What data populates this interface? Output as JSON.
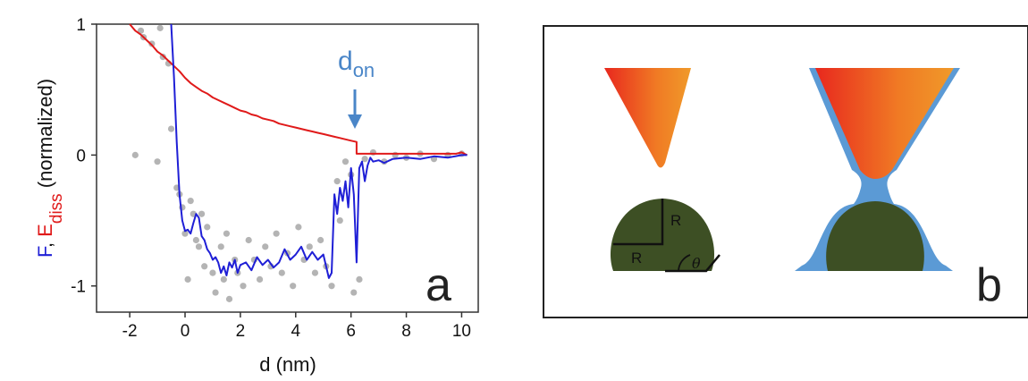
{
  "panel_a": {
    "letter": "a",
    "annotation": {
      "main": "d",
      "sub": "on"
    }
  },
  "panel_b": {
    "letter": "b",
    "labels": {
      "r1": "R",
      "r2": "R",
      "theta": "θ"
    }
  },
  "colors": {
    "force": "#1f1fd6",
    "energy": "#e01a1a",
    "points": "#b4b4b4",
    "annotation": "#4a86c8",
    "particle": "#3d4f24",
    "water": "#5b9ad5",
    "tip_start": "#e8281e",
    "tip_end": "#f09a2a"
  },
  "chart_data": {
    "type": "line",
    "title": "",
    "xlabel": "d (nm)",
    "ylabel_parts": [
      {
        "text": "F",
        "color": "#1f1fd6"
      },
      {
        "text": ", ",
        "color": "#111111"
      },
      {
        "text": "E",
        "color": "#e01a1a"
      },
      {
        "text": "diss",
        "color": "#e01a1a",
        "sub": true
      },
      {
        "text": " (normalized)",
        "color": "#111111"
      }
    ],
    "xlim": [
      -3.2,
      10.6
    ],
    "ylim": [
      -1.2,
      1.0
    ],
    "xticks": [
      -2,
      0,
      2,
      4,
      6,
      8,
      10
    ],
    "xtick_labels": [
      "-2",
      "0",
      "2",
      "4",
      "6",
      "8",
      "10"
    ],
    "yticks": [
      -1,
      0,
      1
    ],
    "ytick_labels": [
      "-1",
      "0",
      "1"
    ],
    "grid": false,
    "series": [
      {
        "role": "energy",
        "color": "#e01a1a",
        "x": [
          -2.0,
          -1.8,
          -1.6,
          -1.4,
          -1.2,
          -1.0,
          -0.8,
          -0.6,
          -0.4,
          -0.2,
          0.0,
          0.2,
          0.4,
          0.6,
          0.8,
          1.0,
          1.2,
          1.4,
          1.6,
          1.8,
          2.0,
          2.2,
          2.4,
          2.6,
          2.8,
          3.0,
          3.2,
          3.4,
          3.6,
          3.8,
          4.0,
          4.2,
          4.4,
          4.6,
          4.8,
          5.0,
          5.2,
          5.4,
          5.6,
          5.8,
          6.0,
          6.2,
          6.2,
          7.0,
          8.0,
          9.0,
          9.8,
          10.0,
          10.2
        ],
        "y": [
          1.0,
          0.95,
          0.92,
          0.88,
          0.84,
          0.79,
          0.76,
          0.72,
          0.68,
          0.64,
          0.59,
          0.55,
          0.52,
          0.49,
          0.47,
          0.44,
          0.42,
          0.4,
          0.38,
          0.36,
          0.34,
          0.33,
          0.31,
          0.3,
          0.28,
          0.27,
          0.26,
          0.24,
          0.23,
          0.22,
          0.21,
          0.2,
          0.19,
          0.18,
          0.17,
          0.16,
          0.15,
          0.14,
          0.13,
          0.12,
          0.11,
          0.1,
          0.01,
          0.01,
          0.01,
          0.01,
          0.01,
          0.02,
          0.0
        ]
      },
      {
        "role": "force",
        "color": "#1f1fd6",
        "x": [
          -0.5,
          -0.4,
          -0.3,
          -0.2,
          -0.1,
          0.0,
          0.1,
          0.2,
          0.3,
          0.4,
          0.5,
          0.6,
          0.7,
          0.8,
          0.9,
          1.0,
          1.1,
          1.2,
          1.3,
          1.4,
          1.5,
          1.6,
          1.7,
          1.8,
          1.9,
          2.0,
          2.2,
          2.4,
          2.6,
          2.8,
          3.0,
          3.2,
          3.4,
          3.6,
          3.8,
          4.0,
          4.2,
          4.4,
          4.6,
          4.8,
          5.0,
          5.2,
          5.3,
          5.4,
          5.5,
          5.6,
          5.7,
          5.8,
          5.9,
          6.0,
          6.1,
          6.2,
          6.3,
          6.4,
          6.5,
          6.6,
          6.7,
          6.8,
          7.0,
          7.2,
          7.5,
          8.0,
          8.5,
          9.0,
          9.5,
          10.0,
          10.2
        ],
        "y": [
          1.0,
          0.6,
          0.1,
          -0.3,
          -0.5,
          -0.58,
          -0.57,
          -0.6,
          -0.52,
          -0.45,
          -0.48,
          -0.62,
          -0.65,
          -0.72,
          -0.75,
          -0.8,
          -0.78,
          -0.82,
          -0.9,
          -0.85,
          -0.92,
          -0.82,
          -0.86,
          -0.8,
          -0.9,
          -0.84,
          -0.82,
          -0.88,
          -0.78,
          -0.84,
          -0.8,
          -0.86,
          -0.82,
          -0.72,
          -0.8,
          -0.76,
          -0.7,
          -0.8,
          -0.74,
          -0.8,
          -0.76,
          -0.94,
          -0.9,
          -0.3,
          -0.45,
          -0.25,
          -0.35,
          -0.2,
          -0.4,
          -0.1,
          -0.3,
          -0.82,
          -0.1,
          -0.05,
          -0.2,
          -0.08,
          -0.02,
          -0.05,
          -0.04,
          -0.06,
          -0.03,
          -0.02,
          -0.03,
          -0.01,
          -0.02,
          0.0,
          0.0
        ]
      }
    ],
    "points": {
      "color": "#b4b4b4",
      "x": [
        -1.8,
        -1.6,
        -1.5,
        -1.2,
        -1.0,
        -0.9,
        -0.8,
        -0.6,
        -0.5,
        -0.3,
        -0.2,
        -0.1,
        0.0,
        0.1,
        0.2,
        0.3,
        0.4,
        0.5,
        0.6,
        0.7,
        0.8,
        1.0,
        1.1,
        1.3,
        1.4,
        1.5,
        1.6,
        1.8,
        1.9,
        2.1,
        2.3,
        2.5,
        2.7,
        2.9,
        3.1,
        3.3,
        3.5,
        3.7,
        3.9,
        4.1,
        4.3,
        4.5,
        4.7,
        4.9,
        5.1,
        5.3,
        5.5,
        5.6,
        5.8,
        6.0,
        6.1,
        6.3,
        6.5,
        6.8,
        7.2,
        7.6,
        8.0,
        8.5,
        9.0,
        9.5,
        10.0
      ],
      "y": [
        0.0,
        0.95,
        0.9,
        0.85,
        -0.05,
        0.97,
        0.75,
        0.7,
        0.2,
        -0.25,
        -0.3,
        -0.4,
        -0.6,
        -0.95,
        -0.35,
        -0.45,
        -0.65,
        -0.7,
        -0.45,
        -0.85,
        -0.55,
        -0.9,
        -1.05,
        -0.7,
        -0.95,
        -0.6,
        -1.1,
        -0.8,
        -0.9,
        -1.0,
        -0.65,
        -0.8,
        -0.95,
        -0.7,
        -0.85,
        -0.6,
        -0.9,
        -0.75,
        -1.0,
        -0.55,
        -0.8,
        -0.7,
        -0.9,
        -0.65,
        -0.85,
        -1.0,
        -0.2,
        -0.5,
        -0.05,
        -0.15,
        -1.05,
        -0.95,
        -0.03,
        0.02,
        -0.05,
        0.0,
        -0.02,
        0.01,
        -0.03,
        0.0,
        0.01
      ]
    }
  }
}
